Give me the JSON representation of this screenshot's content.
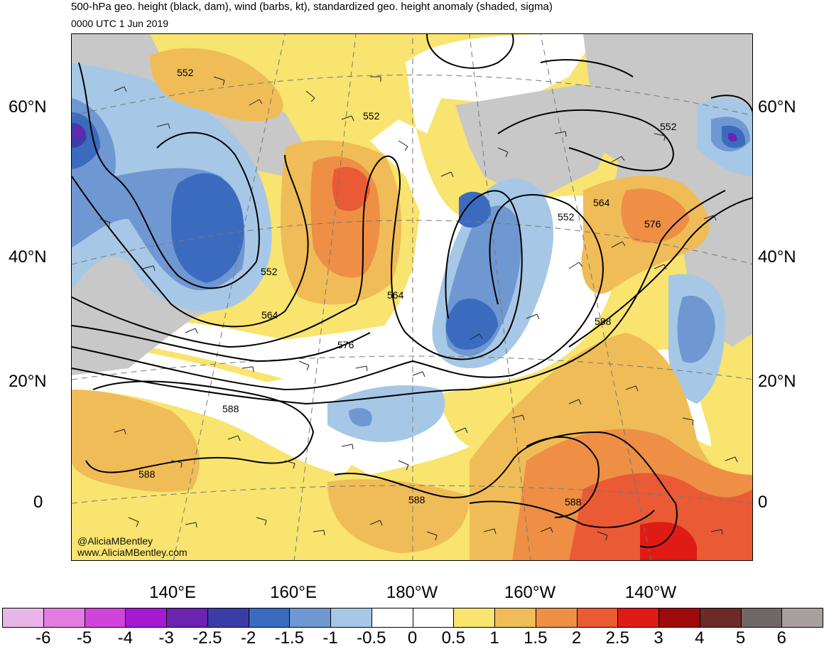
{
  "header": {
    "title": "500-hPa geo. height (black, dam), wind (barbs, kt), standardized geo. height anomaly (shaded, sigma)",
    "valid_time": "0000 UTC 1 Jun 2019"
  },
  "credits": [
    "@AliciaMBentley",
    "www.AliciaMBentley.com"
  ],
  "axes": {
    "lat_labels": [
      "60°N",
      "40°N",
      "20°N",
      "0"
    ],
    "lon_labels": [
      "140°E",
      "160°E",
      "180°W",
      "160°W",
      "140°W"
    ]
  },
  "contour_labels": [
    "552",
    "552",
    "552",
    "552",
    "552",
    "564",
    "564",
    "564",
    "576",
    "576",
    "588",
    "588",
    "588",
    "588",
    "588"
  ],
  "colorbar": {
    "labels": [
      "-6",
      "-5",
      "-4",
      "-3",
      "-2.5",
      "-2",
      "-1.5",
      "-1",
      "-0.5",
      "0",
      "0.5",
      "1",
      "1.5",
      "2",
      "2.5",
      "3",
      "4",
      "5",
      "6"
    ],
    "colors": [
      "#e8b6e6",
      "#e27ce2",
      "#cf45da",
      "#a51ad0",
      "#6a24b0",
      "#3c3ca8",
      "#3a6bbe",
      "#6f97d2",
      "#a6c8e6",
      "#ffffff",
      "#ffffff",
      "#f8e46e",
      "#f0bc57",
      "#ee8f45",
      "#ea5a34",
      "#e01b15",
      "#a10a0a",
      "#6e2a26",
      "#706767",
      "#a89f9f"
    ]
  }
}
